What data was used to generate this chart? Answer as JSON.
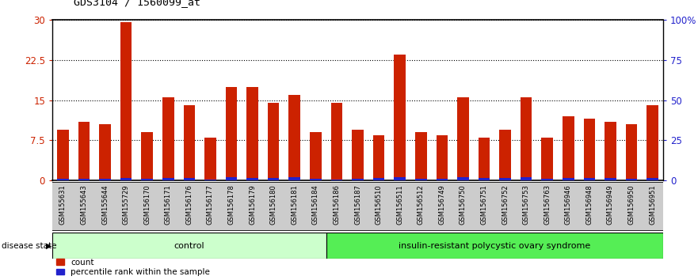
{
  "title": "GDS3104 / 1560099_at",
  "samples": [
    "GSM155631",
    "GSM155643",
    "GSM155644",
    "GSM155729",
    "GSM156170",
    "GSM156171",
    "GSM156176",
    "GSM156177",
    "GSM156178",
    "GSM156179",
    "GSM156180",
    "GSM156181",
    "GSM156184",
    "GSM156186",
    "GSM156187",
    "GSM156510",
    "GSM156511",
    "GSM156512",
    "GSM156749",
    "GSM156750",
    "GSM156751",
    "GSM156752",
    "GSM156753",
    "GSM156763",
    "GSM156946",
    "GSM156948",
    "GSM156949",
    "GSM156950",
    "GSM156951"
  ],
  "counts": [
    9.5,
    11.0,
    10.5,
    29.5,
    9.0,
    15.5,
    14.0,
    8.0,
    17.5,
    17.5,
    14.5,
    16.0,
    9.0,
    14.5,
    9.5,
    8.5,
    23.5,
    9.0,
    8.5,
    15.5,
    8.0,
    9.5,
    15.5,
    8.0,
    12.0,
    11.5,
    11.0,
    10.5,
    14.0
  ],
  "percentile_ranks": [
    0.3,
    0.33,
    0.27,
    0.5,
    0.4,
    0.53,
    0.43,
    0.2,
    0.57,
    0.5,
    0.5,
    0.6,
    0.27,
    0.2,
    0.27,
    0.47,
    0.57,
    0.37,
    0.37,
    0.57,
    0.47,
    0.53,
    0.57,
    0.33,
    0.47,
    0.53,
    0.47,
    0.4,
    0.53
  ],
  "n_control": 13,
  "control_label": "control",
  "disease_label": "insulin-resistant polycystic ovary syndrome",
  "disease_state_label": "disease state",
  "bar_color_red": "#CC2200",
  "bar_color_blue": "#2222CC",
  "control_bg": "#CCFFCC",
  "disease_bg": "#55EE55",
  "left_yticks": [
    0,
    7.5,
    15,
    22.5,
    30
  ],
  "right_yticks": [
    0,
    25,
    50,
    75,
    100
  ],
  "right_yticklabels": [
    "0",
    "25",
    "50",
    "75",
    "100%"
  ],
  "ylim_left": [
    0,
    30
  ],
  "ylim_right": [
    0,
    100
  ],
  "legend_count": "count",
  "legend_pct": "percentile rank within the sample",
  "grid_color": "black",
  "title_color": "black",
  "left_axis_color": "#CC2200",
  "right_axis_color": "#2222CC",
  "label_bg_color": "#CCCCCC"
}
